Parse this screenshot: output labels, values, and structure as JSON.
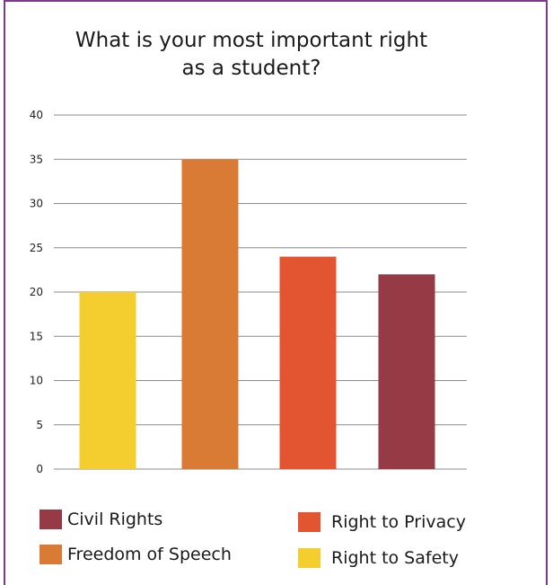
{
  "title": "What is your most important right\nas a student?",
  "chart_data": {
    "type": "bar",
    "title": "What is your most important right\nas a student?",
    "categories": [
      "Right to Safety",
      "Freedom of Speech",
      "Right to Privacy",
      "Civil Rights"
    ],
    "values": [
      20,
      35,
      24,
      22
    ],
    "colors": [
      "#f4cd2f",
      "#d97b35",
      "#e35430",
      "#963a45"
    ],
    "ylim": [
      0,
      40
    ],
    "yticks": [
      "0",
      "5",
      "10",
      "15",
      "20",
      "25",
      "30",
      "35",
      "40"
    ],
    "ytick_values": [
      0,
      5,
      10,
      15,
      20,
      25,
      30,
      35,
      40
    ],
    "grid": true,
    "legend_position": "bottom"
  },
  "legend": [
    {
      "label": "Civil Rights",
      "color": "#963a45"
    },
    {
      "label": "Right to Privacy",
      "color": "#e35430"
    },
    {
      "label": "Freedom of Speech",
      "color": "#d97b35"
    },
    {
      "label": "Right to Safety",
      "color": "#f4cd2f"
    }
  ],
  "colors": {
    "frame_border": "#7b3a8f",
    "gridline": "#8c8c8c"
  }
}
